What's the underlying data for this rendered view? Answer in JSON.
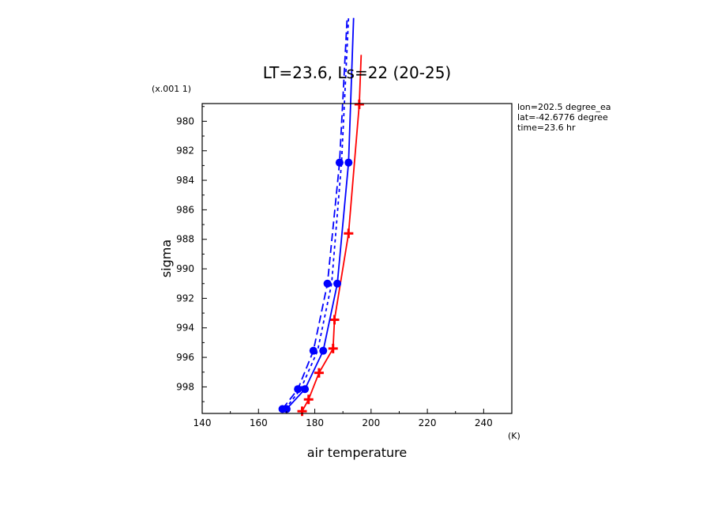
{
  "chart_data": {
    "type": "line",
    "title": "LT=23.6, Ls=22 (20-25)",
    "xlabel": "air temperature",
    "xunit": "(K)",
    "ylabel": "sigma",
    "yscale_note": "(x.001 1)",
    "xlim": [
      140,
      250
    ],
    "ylim": [
      999.8,
      978.8
    ],
    "xticks": [
      140,
      160,
      180,
      200,
      220,
      240
    ],
    "yticks": [
      980,
      982,
      984,
      986,
      988,
      990,
      992,
      994,
      996,
      998
    ],
    "info": [
      "lon=202.5 degree_ea",
      "lat=-42.6776 degree",
      "time=23.6 hr"
    ],
    "series": [
      {
        "color": "#ff0000",
        "dash": "",
        "marker": "plus",
        "points": [
          [
            175.5,
            999.65
          ],
          [
            177.8,
            998.85
          ],
          [
            181.5,
            997.05
          ],
          [
            186.5,
            995.4
          ],
          [
            187.0,
            993.45
          ],
          [
            192.0,
            987.6
          ],
          [
            195.8,
            978.85
          ],
          [
            196.5,
            975.5
          ]
        ]
      },
      {
        "color": "#0000ff",
        "dash": "",
        "marker": "dot",
        "points": [
          [
            170.0,
            999.5
          ],
          [
            176.5,
            998.15
          ],
          [
            183.0,
            995.55
          ],
          [
            188.0,
            991.0
          ],
          [
            192.0,
            982.8
          ],
          [
            193.8,
            973.0
          ]
        ]
      },
      {
        "color": "#0000ff",
        "dash": "10,5",
        "marker": "dot",
        "points": [
          [
            168.5,
            999.5
          ],
          [
            174.0,
            998.15
          ],
          [
            179.5,
            995.55
          ],
          [
            184.5,
            991.0
          ],
          [
            188.8,
            982.8
          ],
          [
            191.5,
            973.0
          ]
        ]
      },
      {
        "color": "#0000ff",
        "dash": "4,4",
        "marker": "none",
        "points": [
          [
            169.5,
            999.5
          ],
          [
            175.0,
            998.15
          ],
          [
            181.0,
            995.55
          ],
          [
            186.0,
            991.0
          ],
          [
            189.5,
            982.8
          ],
          [
            192.0,
            973.0
          ]
        ]
      }
    ]
  }
}
